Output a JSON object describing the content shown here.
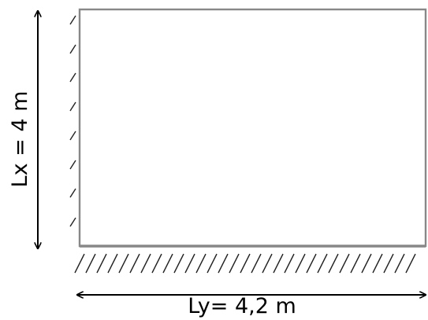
{
  "labels": {
    "lx": "Lx = 4 m",
    "ly": "Ly= 4,2 m"
  },
  "colors": {
    "slab_edge": "#888888",
    "support_bottom": "#888888",
    "hatch": "#222222",
    "arrow": "#000000",
    "background": "#ffffff"
  }
}
